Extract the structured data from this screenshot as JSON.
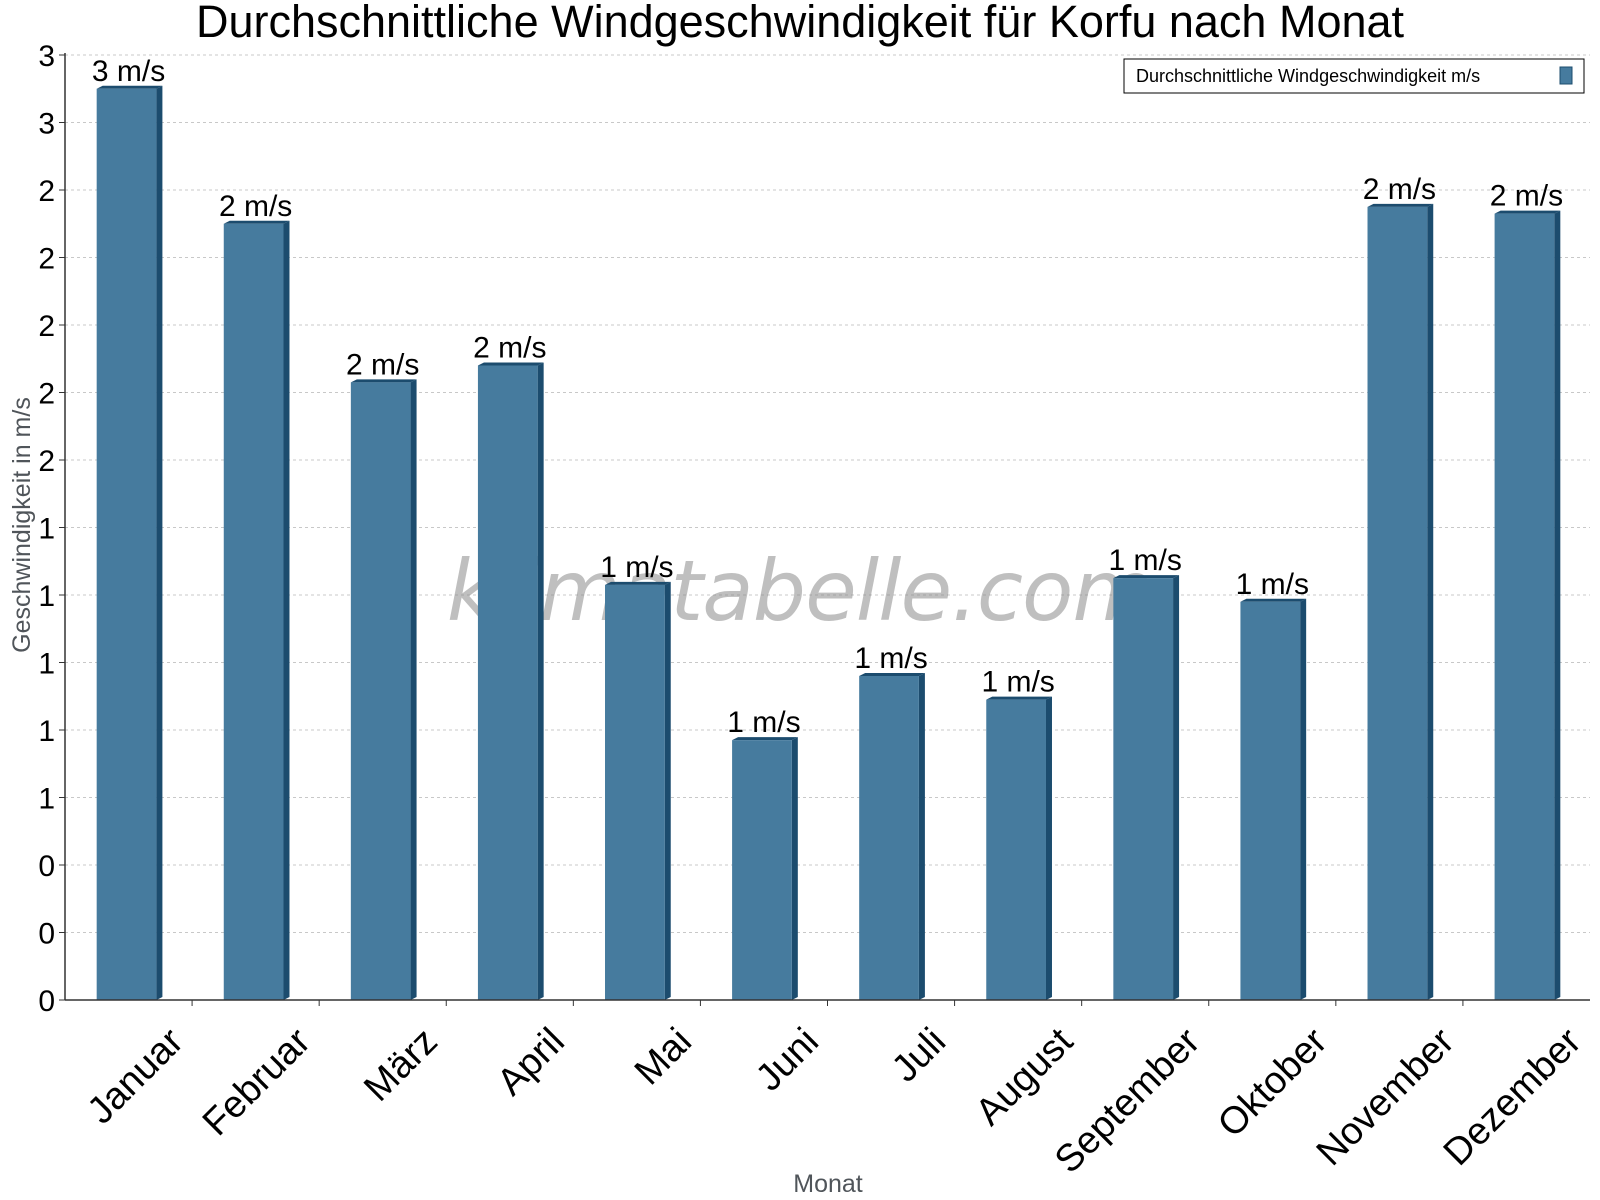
{
  "chart_data": {
    "type": "bar",
    "title": "Durchschnittliche Windgeschwindigkeit für Korfu nach Monat",
    "xlabel": "Monat",
    "ylabel": "Geschwindigkeit in m/s",
    "categories": [
      "Januar",
      "Februar",
      "März",
      "April",
      "Mai",
      "Juni",
      "Juli",
      "August",
      "September",
      "Oktober",
      "November",
      "Dezember"
    ],
    "series": [
      {
        "name": "Durchschnittliche Windgeschwindigkeit m/s",
        "values": [
          2.7,
          2.3,
          1.83,
          1.88,
          1.23,
          0.77,
          0.96,
          0.89,
          1.25,
          1.18,
          2.35,
          2.33
        ],
        "data_labels": [
          "3 m/s",
          "2 m/s",
          "2 m/s",
          "2 m/s",
          "1 m/s",
          "1 m/s",
          "1 m/s",
          "1 m/s",
          "1 m/s",
          "1 m/s",
          "2 m/s",
          "2 m/s"
        ]
      }
    ],
    "y_tick_values": [
      0,
      0.2,
      0.4,
      0.6,
      0.8,
      1.0,
      1.2,
      1.4,
      1.6,
      1.8,
      2.0,
      2.2,
      2.4,
      2.6,
      2.8
    ],
    "y_tick_labels": [
      "0",
      "0",
      "0",
      "1",
      "1",
      "1",
      "1",
      "1",
      "2",
      "2",
      "2",
      "2",
      "2",
      "3",
      "3"
    ],
    "ylim": [
      0,
      2.8
    ],
    "grid": true,
    "legend_position": "top-right",
    "watermark": "klimatabelle.com",
    "colors": {
      "bar_face": "#467b9e",
      "bar_side": "#1c4c6e",
      "grid": "#c8c8c8",
      "axis": "#333333"
    }
  }
}
